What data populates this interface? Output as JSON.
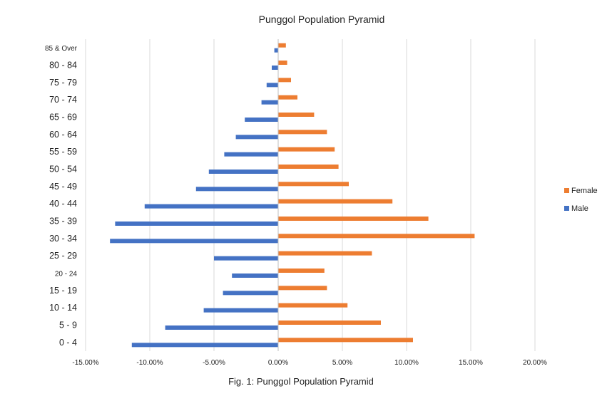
{
  "caption": "Fig. 1: Punggol Population Pyramid",
  "colors": {
    "female": "#ED7D31",
    "male": "#4472C4",
    "grid": "#d9d9d9",
    "axis": "#bfbfbf"
  },
  "chart_data": {
    "type": "bar",
    "orientation": "horizontal",
    "title": "Punggol Population Pyramid",
    "xlabel": "",
    "ylabel": "",
    "xlim": [
      -0.15,
      0.2
    ],
    "x_ticks": [
      -0.15,
      -0.1,
      -0.05,
      0,
      0.05,
      0.1,
      0.15,
      0.2
    ],
    "x_tick_labels": [
      "-15.00%",
      "-10.00%",
      "-5.00%",
      "0.00%",
      "5.00%",
      "10.00%",
      "15.00%",
      "20.00%"
    ],
    "grid": "vertical",
    "legend": "right",
    "categories": [
      "85 & Over",
      "80  -  84",
      "75  -  79",
      "70  -  74",
      "65  -  69",
      "60  -  64",
      "55  -  59",
      "50  -  54",
      "45  -  49",
      "40  -  44",
      "35  -  39",
      "30  -  34",
      "25  -  29",
      "20 - 24",
      "15  -  19",
      "10  -  14",
      "5  -  9",
      "0  -  4"
    ],
    "series": [
      {
        "name": "Female",
        "color": "#ED7D31",
        "values": [
          0.006,
          0.007,
          0.01,
          0.015,
          0.028,
          0.038,
          0.044,
          0.047,
          0.055,
          0.089,
          0.117,
          0.153,
          0.073,
          0.036,
          0.038,
          0.054,
          0.08,
          0.105
        ]
      },
      {
        "name": "Male",
        "color": "#4472C4",
        "values": [
          -0.003,
          -0.005,
          -0.009,
          -0.013,
          -0.026,
          -0.033,
          -0.042,
          -0.054,
          -0.064,
          -0.104,
          -0.127,
          -0.131,
          -0.05,
          -0.036,
          -0.043,
          -0.058,
          -0.088,
          -0.114
        ]
      }
    ]
  }
}
